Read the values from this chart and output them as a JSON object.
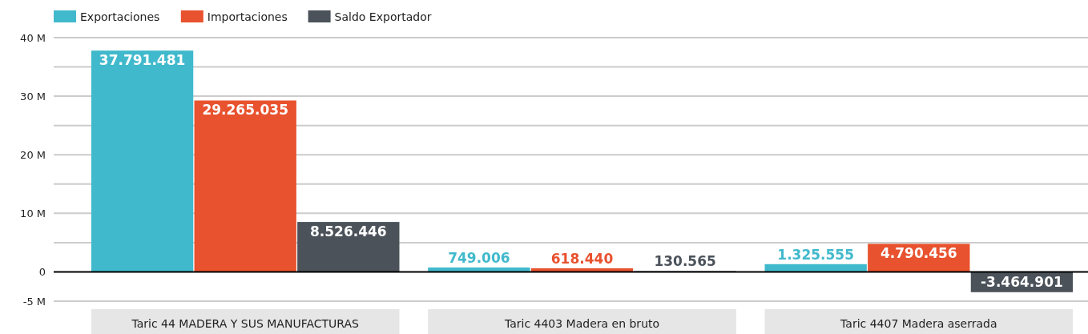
{
  "chart_data": {
    "type": "bar",
    "categories": [
      "Taric 44 MADERA Y SUS MANUFACTURAS",
      "Taric 4403 Madera en bruto",
      "Taric 4407 Madera aserrada"
    ],
    "series": [
      {
        "name": "Exportaciones",
        "color": "#41b9cc",
        "values": [
          37791481,
          749006,
          1325555
        ],
        "value_labels": [
          "37.791.481",
          "749.006",
          "1.325.555"
        ]
      },
      {
        "name": "Importaciones",
        "color": "#e8522e",
        "values": [
          29265035,
          618440,
          4790456
        ],
        "value_labels": [
          "29.265.035",
          "618.440",
          "4.790.456"
        ]
      },
      {
        "name": "Saldo Exportador",
        "color": "#4b525a",
        "values": [
          8526446,
          130565,
          -3464901
        ],
        "value_labels": [
          "8.526.446",
          "130.565",
          "-3.464.901"
        ]
      }
    ],
    "ylim": [
      -5000000,
      40000000
    ],
    "yticks": [
      {
        "value": -5000000,
        "label": "-5 M"
      },
      {
        "value": 0,
        "label": "0"
      },
      {
        "value": 5000000,
        "label": null
      },
      {
        "value": 10000000,
        "label": "10 M"
      },
      {
        "value": 15000000,
        "label": null
      },
      {
        "value": 20000000,
        "label": "20 M"
      },
      {
        "value": 25000000,
        "label": null
      },
      {
        "value": 30000000,
        "label": "30 M"
      },
      {
        "value": 35000000,
        "label": null
      },
      {
        "value": 40000000,
        "label": "40 M"
      }
    ],
    "grid": "y",
    "legend": "top left"
  }
}
